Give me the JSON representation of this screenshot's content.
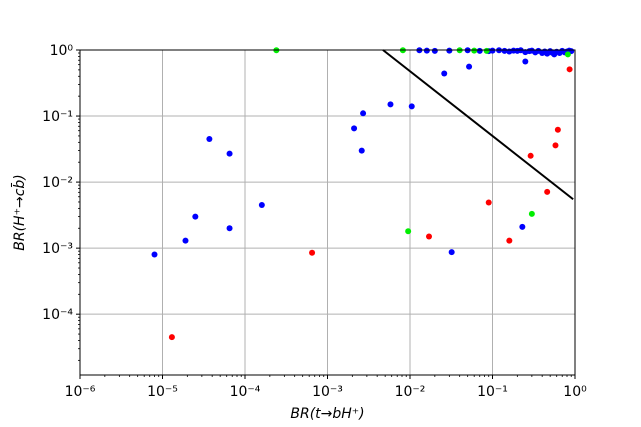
{
  "chart_data": {
    "type": "scatter",
    "xscale": "log",
    "yscale": "log",
    "xlim": [
      1e-06,
      1
    ],
    "ylim": [
      1.2e-05,
      1
    ],
    "grid": true,
    "xlabel": "BR(t→bH⁺)",
    "ylabel": "BR(H⁺→cb̄)",
    "x_ticks": [
      {
        "value": 1e-06,
        "label": "10⁻⁶"
      },
      {
        "value": 1e-05,
        "label": "10⁻⁵"
      },
      {
        "value": 0.0001,
        "label": "10⁻⁴"
      },
      {
        "value": 0.001,
        "label": "10⁻³"
      },
      {
        "value": 0.01,
        "label": "10⁻²"
      },
      {
        "value": 0.1,
        "label": "10⁻¹"
      },
      {
        "value": 1,
        "label": "10⁰"
      }
    ],
    "y_ticks": [
      {
        "value": 0.0001,
        "label": "10⁻⁴"
      },
      {
        "value": 0.001,
        "label": "10⁻³"
      },
      {
        "value": 0.01,
        "label": "10⁻²"
      },
      {
        "value": 0.1,
        "label": "10⁻¹"
      },
      {
        "value": 1,
        "label": "10⁰"
      }
    ],
    "series": [
      {
        "color": "#0000ff",
        "points": [
          [
            8e-06,
            0.0008
          ],
          [
            1.9e-05,
            0.0013
          ],
          [
            2.5e-05,
            0.003
          ],
          [
            3.7e-05,
            0.045
          ],
          [
            6.5e-05,
            0.027
          ],
          [
            6.5e-05,
            0.002
          ],
          [
            0.00016,
            0.0045
          ],
          [
            0.0021,
            0.065
          ],
          [
            0.0026,
            0.03
          ],
          [
            0.0027,
            0.11
          ],
          [
            0.0058,
            0.15
          ],
          [
            0.0105,
            0.14
          ],
          [
            0.026,
            0.44
          ],
          [
            0.032,
            0.00087
          ],
          [
            0.052,
            0.56
          ],
          [
            0.23,
            0.0021
          ],
          [
            0.25,
            0.67
          ],
          [
            0.013,
            0.99
          ],
          [
            0.016,
            0.98
          ],
          [
            0.02,
            0.97
          ],
          [
            0.03,
            0.98
          ],
          [
            0.05,
            0.99
          ],
          [
            0.07,
            0.97
          ],
          [
            0.09,
            0.96
          ],
          [
            0.1,
            0.98
          ],
          [
            0.12,
            0.99
          ],
          [
            0.14,
            0.97
          ],
          [
            0.16,
            0.95
          ],
          [
            0.18,
            0.98
          ],
          [
            0.2,
            0.97
          ],
          [
            0.22,
            0.99
          ],
          [
            0.25,
            0.93
          ],
          [
            0.28,
            0.96
          ],
          [
            0.3,
            0.98
          ],
          [
            0.33,
            0.92
          ],
          [
            0.36,
            0.97
          ],
          [
            0.4,
            0.9
          ],
          [
            0.43,
            0.95
          ],
          [
            0.46,
            0.88
          ],
          [
            0.5,
            0.96
          ],
          [
            0.53,
            0.91
          ],
          [
            0.56,
            0.86
          ],
          [
            0.6,
            0.94
          ],
          [
            0.65,
            0.9
          ],
          [
            0.7,
            0.97
          ],
          [
            0.75,
            0.92
          ],
          [
            0.8,
            0.95
          ],
          [
            0.85,
            0.98
          ],
          [
            0.9,
            0.96
          ]
        ]
      },
      {
        "color": "#00ee00",
        "points": [
          [
            0.00024,
            0.99
          ],
          [
            0.0082,
            0.99
          ],
          [
            0.0095,
            0.0018
          ],
          [
            0.04,
            0.99
          ],
          [
            0.06,
            0.98
          ],
          [
            0.085,
            0.97
          ],
          [
            0.3,
            0.0033
          ],
          [
            0.82,
            0.86
          ]
        ]
      },
      {
        "color": "#ff0000",
        "points": [
          [
            1.3e-05,
            4.5e-05
          ],
          [
            0.00065,
            0.00085
          ],
          [
            0.017,
            0.0015
          ],
          [
            0.09,
            0.0049
          ],
          [
            0.16,
            0.0013
          ],
          [
            0.29,
            0.025
          ],
          [
            0.46,
            0.0071
          ],
          [
            0.58,
            0.036
          ],
          [
            0.62,
            0.062
          ],
          [
            0.86,
            0.51
          ]
        ]
      }
    ],
    "line": {
      "color": "#000000",
      "points": [
        [
          0.0047,
          1.0
        ],
        [
          0.95,
          0.0055
        ]
      ]
    }
  }
}
